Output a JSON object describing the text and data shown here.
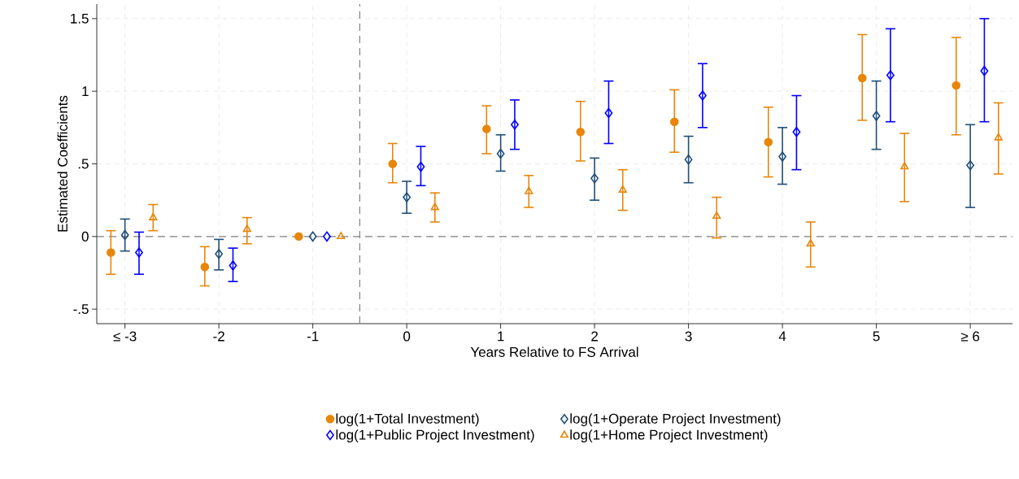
{
  "chart_data": {
    "type": "scatter",
    "xlabel": "Years Relative to FS Arrival",
    "ylabel": "Estimated Coefficients",
    "x": [
      -3,
      -2,
      -1,
      0,
      1,
      2,
      3,
      4,
      5,
      6
    ],
    "xlim": [
      -3.3,
      6.45
    ],
    "ylim": [
      -0.6,
      1.6
    ],
    "xticks": [
      {
        "value": -3,
        "label": "≤ -3"
      },
      -2,
      -1,
      0,
      1,
      2,
      3,
      4,
      5,
      {
        "value": 6,
        "label": "≥ 6"
      }
    ],
    "yticks": [
      {
        "value": -0.5,
        "label": "-.5"
      },
      0,
      {
        "value": 0.5,
        "label": ".5"
      },
      1,
      1.5
    ],
    "grid": true,
    "legend": "bottom",
    "ref_lines": [
      {
        "axis": "y",
        "value": 0,
        "color": "#808080",
        "line_style": "dashed"
      },
      {
        "axis": "x",
        "value": -0.5,
        "color": "#808080",
        "line_style": "dashed"
      }
    ],
    "series": [
      {
        "name": "log(1+Total Investment)",
        "color": "#e8860b",
        "marker": "circle",
        "x": [
          -3.15,
          -2.15,
          -1.15,
          -0.15,
          0.85,
          1.85,
          2.85,
          3.85,
          4.85,
          5.85
        ],
        "values": [
          -0.11,
          -0.21,
          0,
          0.5,
          0.74,
          0.72,
          0.79,
          0.65,
          1.09,
          1.04
        ],
        "errors": [
          [
            -0.26,
            0.04
          ],
          [
            -0.34,
            -0.07
          ],
          null,
          [
            0.37,
            0.64
          ],
          [
            0.57,
            0.9
          ],
          [
            0.52,
            0.93
          ],
          [
            0.58,
            1.01
          ],
          [
            0.41,
            0.89
          ],
          [
            0.8,
            1.39
          ],
          [
            0.7,
            1.37
          ]
        ]
      },
      {
        "name": "log(1+Operate Project Investment)",
        "color": "#1f4e79",
        "marker": "diamond",
        "values": [
          0.01,
          -0.12,
          0,
          0.27,
          0.57,
          0.4,
          0.53,
          0.55,
          0.83,
          0.49
        ],
        "errors": [
          [
            -0.1,
            0.12
          ],
          [
            -0.23,
            -0.02
          ],
          null,
          [
            0.16,
            0.38
          ],
          [
            0.45,
            0.7
          ],
          [
            0.25,
            0.54
          ],
          [
            0.37,
            0.69
          ],
          [
            0.36,
            0.75
          ],
          [
            0.6,
            1.07
          ],
          [
            0.2,
            0.77
          ]
        ]
      },
      {
        "name": "log(1+Public Project Investment)",
        "color": "#0000ff",
        "marker": "diamond",
        "x": [
          -2.85,
          -1.85,
          -0.85,
          0.15,
          1.15,
          2.15,
          3.15,
          4.15,
          5.15,
          6.15
        ],
        "values": [
          -0.11,
          -0.2,
          0,
          0.48,
          0.77,
          0.85,
          0.97,
          0.72,
          1.11,
          1.14
        ],
        "errors": [
          [
            -0.26,
            0.03
          ],
          [
            -0.31,
            -0.08
          ],
          null,
          [
            0.35,
            0.62
          ],
          [
            0.6,
            0.94
          ],
          [
            0.64,
            1.07
          ],
          [
            0.75,
            1.19
          ],
          [
            0.46,
            0.97
          ],
          [
            0.79,
            1.43
          ],
          [
            0.79,
            1.5
          ]
        ]
      },
      {
        "name": "log(1+Home Project Investment)",
        "color": "#e8860b",
        "marker": "triangle",
        "x": [
          -2.7,
          -1.7,
          -0.7,
          0.3,
          1.3,
          2.3,
          3.3,
          4.3,
          5.3,
          6.3
        ],
        "values": [
          0.13,
          0.05,
          0,
          0.2,
          0.31,
          0.32,
          0.14,
          -0.05,
          0.48,
          0.68
        ],
        "errors": [
          [
            0.04,
            0.22
          ],
          [
            -0.05,
            0.13
          ],
          null,
          [
            0.1,
            0.3
          ],
          [
            0.2,
            0.42
          ],
          [
            0.18,
            0.46
          ],
          [
            -0.01,
            0.27
          ],
          [
            -0.21,
            0.1
          ],
          [
            0.24,
            0.71
          ],
          [
            0.43,
            0.92
          ]
        ]
      }
    ]
  }
}
